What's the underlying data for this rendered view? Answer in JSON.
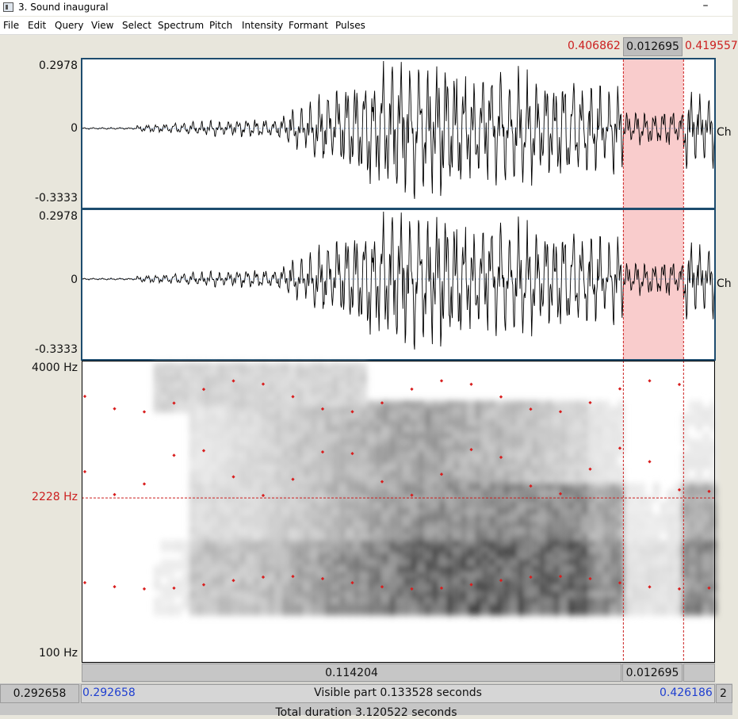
{
  "window": {
    "title": "3. Sound inaugural",
    "minimize_glyph": "–"
  },
  "menu": [
    "File",
    "Edit",
    "Query",
    "View",
    "Select",
    "Spectrum",
    "Pitch",
    "Intensity",
    "Formant",
    "Pulses"
  ],
  "selection": {
    "start": "0.406862",
    "duration": "0.012695",
    "end": "0.419557",
    "start_time_s": 0.406862,
    "end_time_s": 0.419557
  },
  "view": {
    "start_time_s": 0.292658,
    "end_time_s": 0.426186
  },
  "channels": [
    {
      "label": "Ch",
      "y_max": "0.2978",
      "y_zero": "0",
      "y_min": "-0.3333"
    },
    {
      "label": "Ch",
      "y_max": "0.2978",
      "y_zero": "0",
      "y_min": "-0.3333"
    }
  ],
  "spectrogram": {
    "y_top_label": "4000 Hz",
    "y_cursor_label": "2228 Hz",
    "y_bottom_label": "100 Hz",
    "freq_top_hz": 4000,
    "freq_bottom_hz": 100,
    "cursor_hz": 2228,
    "colors": {
      "formant_dots": "#d81e1e",
      "cursor": "#cc1f1f",
      "selection": "#f9cccc"
    }
  },
  "bottom": {
    "left_segment": "0.114204",
    "selection_segment": "0.012695",
    "scroll_left_value": "0.292658",
    "visible_start": "0.292658",
    "visible_label": "Visible part 0.133528 seconds",
    "visible_end": "0.426186",
    "scroll_right_value": "2",
    "total_duration": "Total duration 3.120522 seconds"
  },
  "colors": {
    "panel_border": "#1d4c6e",
    "red_text": "#cc1f1f",
    "blue_text": "#1f3fd0"
  }
}
